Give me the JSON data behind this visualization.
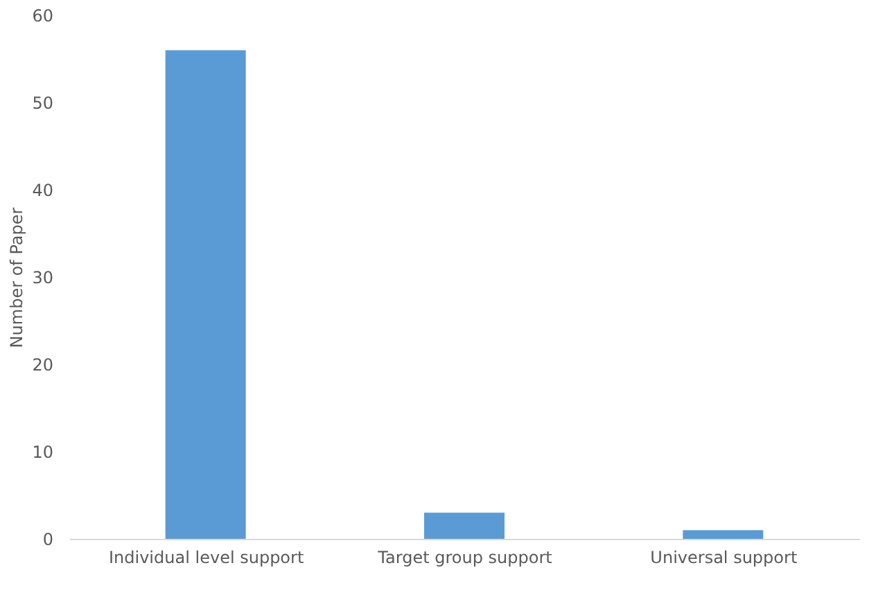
{
  "chart_data": {
    "type": "bar",
    "categories": [
      "Individual level support",
      "Target group support",
      "Universal support"
    ],
    "values": [
      56,
      3,
      1
    ],
    "color": "#5b9bd5",
    "ylabel": "Number  of Paper",
    "ylim": [
      0,
      60
    ],
    "yticks": [
      0,
      10,
      20,
      30,
      40,
      50,
      60
    ],
    "grid": false
  }
}
